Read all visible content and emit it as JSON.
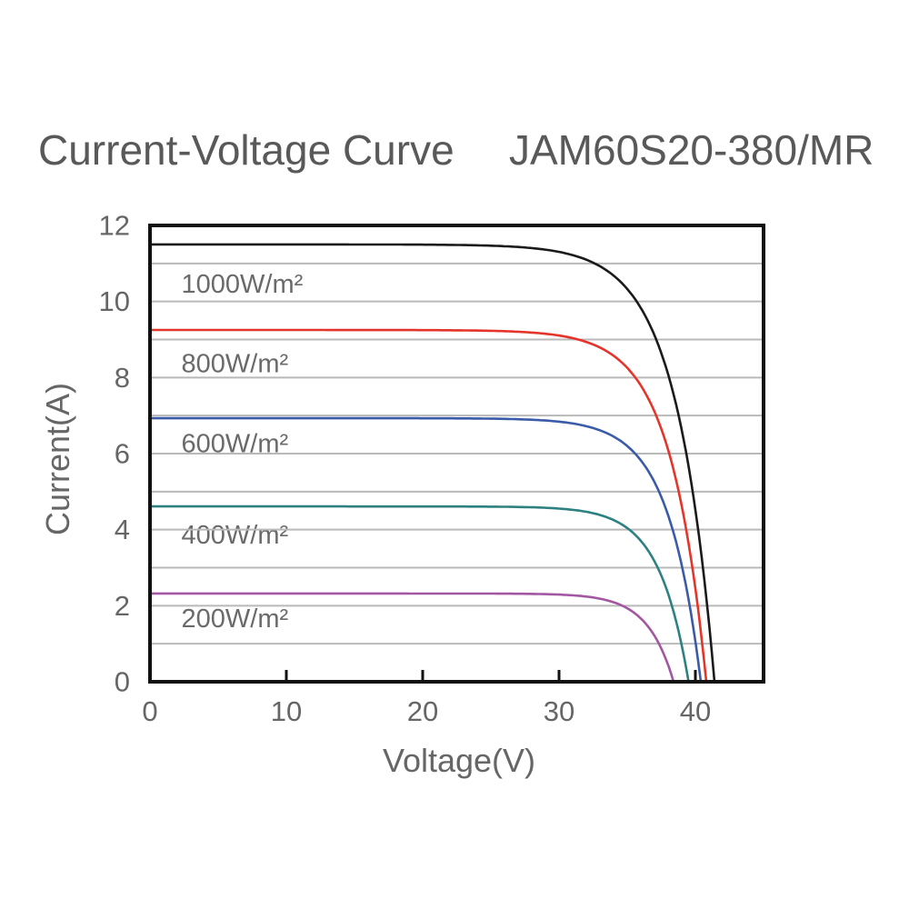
{
  "title": {
    "left": "Current-Voltage Curve",
    "right": "JAM60S20-380/MR"
  },
  "chart_data": {
    "type": "line",
    "title": "Current-Voltage Curve JAM60S20-380/MR",
    "xlabel": "Voltage(V)",
    "ylabel": "Current(A)",
    "xlim": [
      0,
      45
    ],
    "ylim": [
      0,
      12
    ],
    "x_ticks": [
      0,
      10,
      20,
      30,
      40
    ],
    "y_ticks": [
      0,
      2,
      4,
      6,
      8,
      10,
      12
    ],
    "y_grid_interval": 1,
    "grid": "horizontal-only",
    "legend_position": "inline-labels-left",
    "series": [
      {
        "name": "1000W/m²",
        "irradiance_w_m2": 1000,
        "isc_a": 11.5,
        "voc_v": 41.4,
        "knee_a": 2.8,
        "color": "#1a1a1a",
        "label_v": 2.3,
        "label_i": 10.45
      },
      {
        "name": "800W/m²",
        "irradiance_w_m2": 800,
        "isc_a": 9.25,
        "voc_v": 40.8,
        "knee_a": 2.6,
        "color": "#e5342a",
        "label_v": 2.3,
        "label_i": 8.35
      },
      {
        "name": "600W/m²",
        "irradiance_w_m2": 600,
        "isc_a": 6.93,
        "voc_v": 40.4,
        "knee_a": 2.4,
        "color": "#3a5ba9",
        "label_v": 2.3,
        "label_i": 6.25
      },
      {
        "name": "400W/m²",
        "irradiance_w_m2": 400,
        "isc_a": 4.61,
        "voc_v": 39.5,
        "knee_a": 2.15,
        "color": "#2e8181",
        "label_v": 2.3,
        "label_i": 3.85
      },
      {
        "name": "200W/m²",
        "irradiance_w_m2": 200,
        "isc_a": 2.32,
        "voc_v": 38.4,
        "knee_a": 1.9,
        "color": "#a356a2",
        "label_v": 2.3,
        "label_i": 1.65
      }
    ],
    "style": {
      "frame_color": "#111111",
      "grid_color": "#b9b9b9",
      "tick_text_color": "#666666",
      "curve_label_color": "#6a6a6a",
      "title_color": "#595959"
    }
  }
}
